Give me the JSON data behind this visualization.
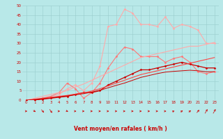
{
  "series": [
    {
      "color": "#ffaaaa",
      "linewidth": 0.8,
      "marker": "D",
      "markersize": 1.5,
      "y": [
        0,
        0,
        1,
        2,
        3,
        6,
        8,
        5,
        9,
        18,
        39,
        40,
        48,
        46,
        40,
        40,
        39,
        44,
        38,
        40,
        39,
        37,
        30,
        30
      ]
    },
    {
      "color": "#ff7777",
      "linewidth": 0.8,
      "marker": "D",
      "markersize": 1.5,
      "y": [
        0,
        0,
        1,
        2,
        4,
        9,
        6,
        1,
        4,
        9,
        17,
        23,
        28,
        27,
        23,
        23,
        23,
        20,
        22,
        23,
        20,
        15,
        14,
        15
      ]
    },
    {
      "color": "#cc0000",
      "linewidth": 0.9,
      "marker": "D",
      "markersize": 1.5,
      "y": [
        0,
        0,
        0.5,
        1,
        1.5,
        2,
        3,
        4,
        4,
        5,
        8,
        10,
        12,
        14,
        16,
        16,
        17,
        18,
        19,
        20,
        19,
        18,
        17,
        17
      ]
    },
    {
      "color": "#ff4444",
      "linewidth": 0.8,
      "marker": null,
      "y": [
        0,
        0.5,
        1,
        1.5,
        2,
        2.5,
        3.2,
        3.8,
        4.8,
        6,
        7.5,
        9,
        10.5,
        12,
        13.5,
        14.5,
        15.5,
        16.5,
        17.5,
        18.5,
        19.5,
        20.5,
        21.5,
        22.5
      ]
    },
    {
      "color": "#ffaaaa",
      "linewidth": 0.8,
      "marker": null,
      "y": [
        0,
        1,
        2,
        3,
        4,
        5,
        7,
        8.5,
        10.5,
        12.5,
        14.5,
        16.5,
        18.5,
        20.5,
        22.5,
        23.5,
        24.5,
        25.5,
        26.5,
        27.5,
        28.5,
        28.5,
        29.5,
        30.5
      ]
    },
    {
      "color": "#cc0000",
      "linewidth": 0.7,
      "marker": null,
      "y": [
        0,
        0.3,
        0.7,
        1.1,
        1.7,
        2.2,
        2.8,
        3.4,
        4.2,
        5.2,
        6.5,
        7.8,
        9,
        10.5,
        12,
        13,
        14,
        14.8,
        15.2,
        15.5,
        15.8,
        15.5,
        15,
        15
      ]
    }
  ],
  "arrow_angles": [
    90,
    70,
    60,
    55,
    90,
    80,
    90,
    90,
    90,
    90,
    90,
    90,
    90,
    90,
    90,
    90,
    90,
    90,
    100,
    110,
    110,
    120,
    130,
    130
  ],
  "xlabel": "Vent moyen/en rafales ( km/h )",
  "xlim": [
    -0.5,
    23.5
  ],
  "ylim": [
    0,
    50
  ],
  "yticks": [
    0,
    5,
    10,
    15,
    20,
    25,
    30,
    35,
    40,
    45,
    50
  ],
  "xticks": [
    0,
    1,
    2,
    3,
    4,
    5,
    6,
    7,
    8,
    9,
    10,
    11,
    12,
    13,
    14,
    15,
    16,
    17,
    18,
    19,
    20,
    21,
    22,
    23
  ],
  "bg_color": "#b8e8e8",
  "grid_color": "#99cccc",
  "text_color": "#cc0000",
  "arrow_color": "#cc0000"
}
